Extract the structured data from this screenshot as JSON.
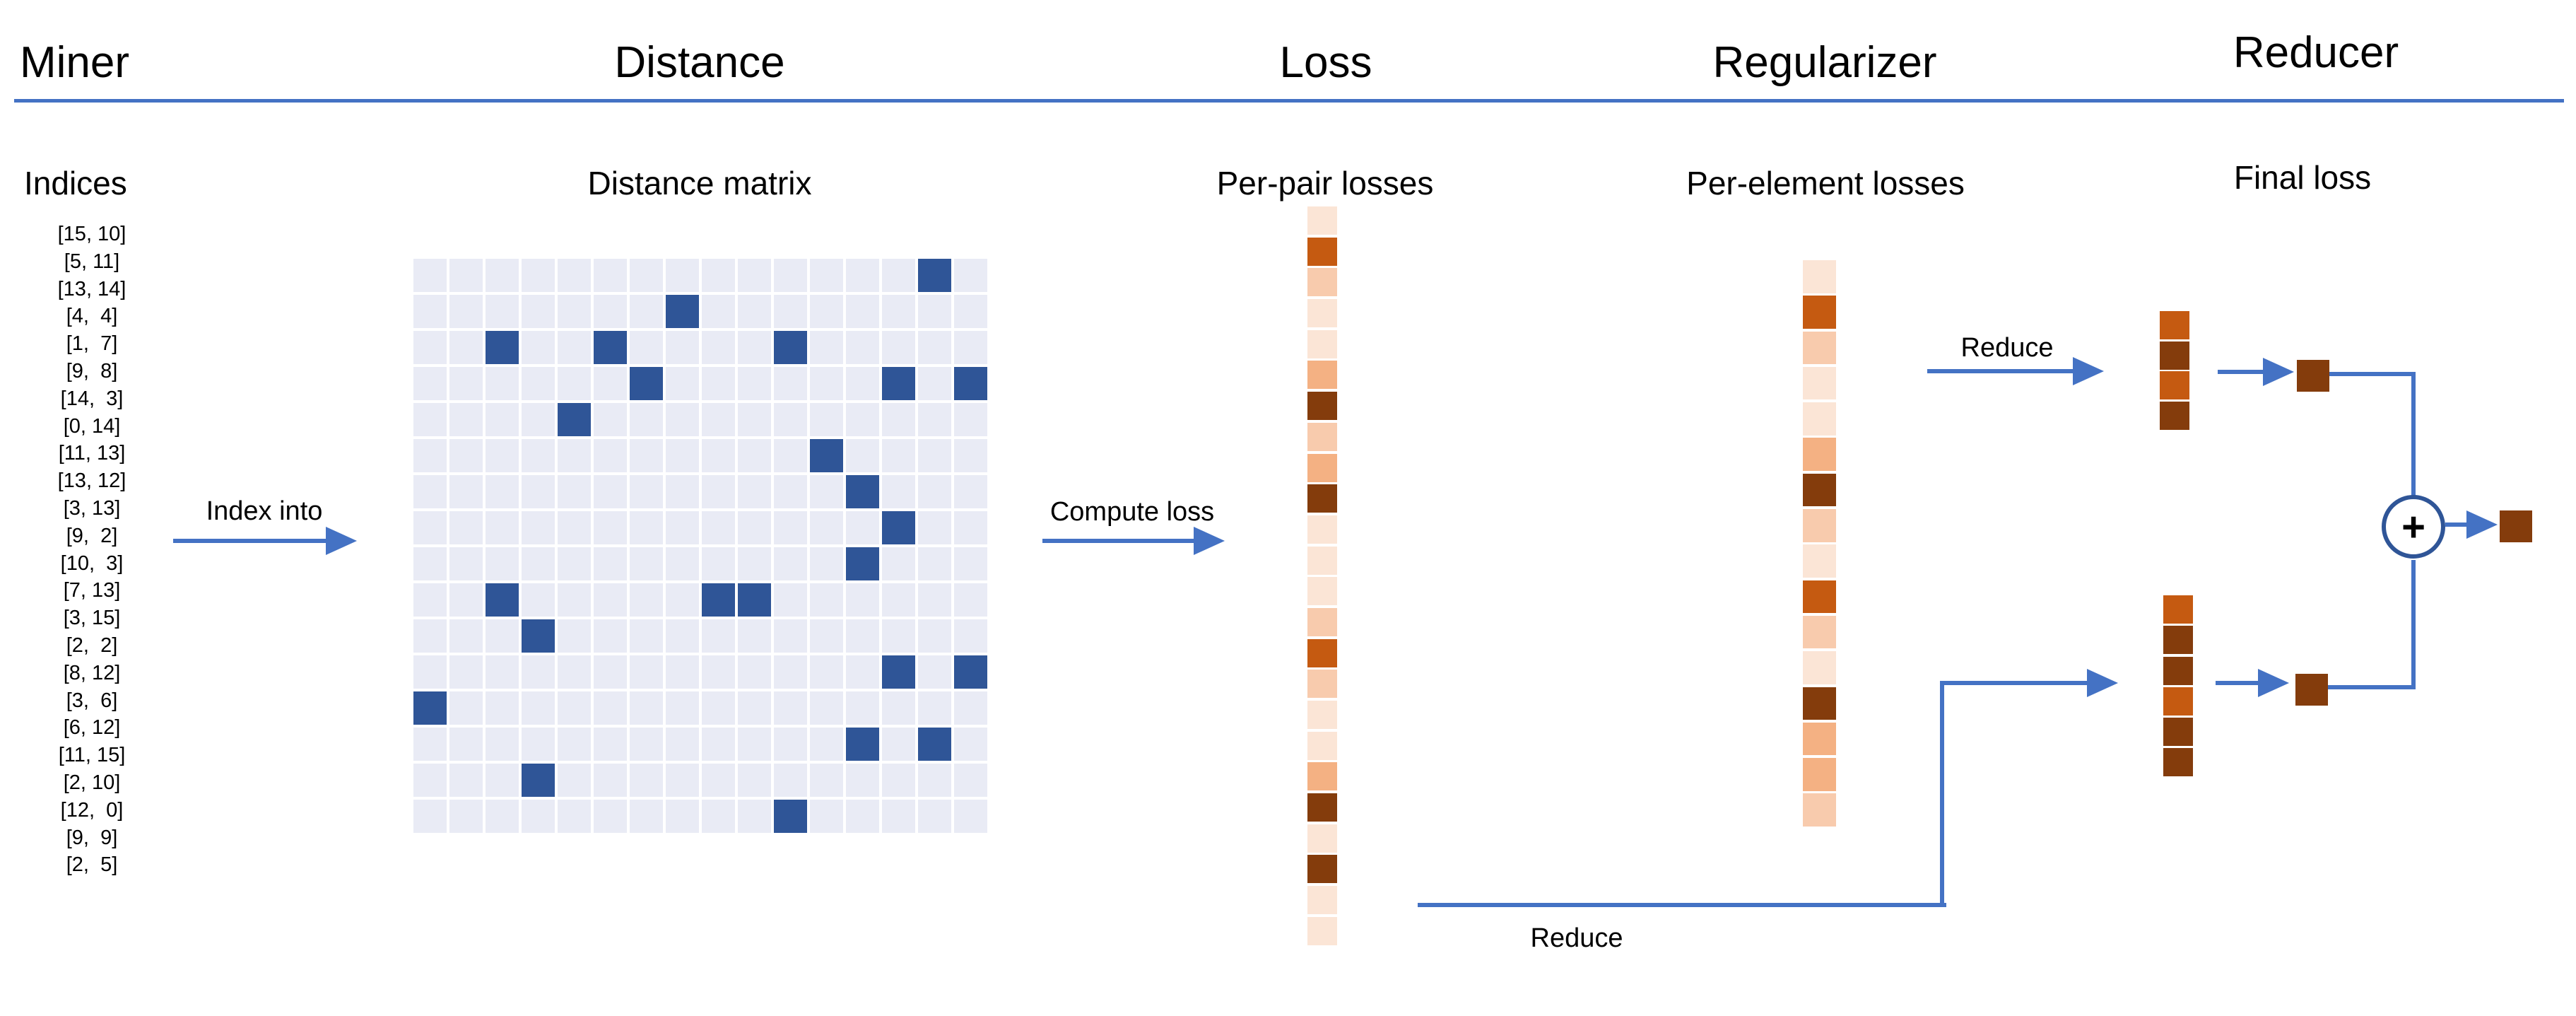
{
  "header": {
    "miner": "Miner",
    "distance": "Distance",
    "loss": "Loss",
    "regularizer": "Regularizer",
    "reducer": "Reducer"
  },
  "miner": {
    "title": "Indices",
    "indices": [
      "[15, 10]",
      "[5, 11]",
      "[13, 14]",
      "[4,  4]",
      "[1,  7]",
      "[9,  8]",
      "[14,  3]",
      "[0, 14]",
      "[11, 13]",
      "[13, 12]",
      "[3, 13]",
      "[9,  2]",
      "[10,  3]",
      "[7, 13]",
      "[3, 15]",
      "[2,  2]",
      "[8, 12]",
      "[3,  6]",
      "[6, 12]",
      "[11, 15]",
      "[2, 10]",
      "[12,  0]",
      "[9,  9]",
      "[2,  5]"
    ]
  },
  "distance": {
    "title": "Distance matrix",
    "grid_size": 16,
    "highlighted_cells": [
      [
        15,
        10
      ],
      [
        5,
        11
      ],
      [
        13,
        14
      ],
      [
        4,
        4
      ],
      [
        1,
        7
      ],
      [
        9,
        8
      ],
      [
        14,
        3
      ],
      [
        0,
        14
      ],
      [
        11,
        13
      ],
      [
        13,
        12
      ],
      [
        3,
        13
      ],
      [
        9,
        2
      ],
      [
        10,
        3
      ],
      [
        7,
        13
      ],
      [
        3,
        15
      ],
      [
        2,
        2
      ],
      [
        8,
        12
      ],
      [
        3,
        6
      ],
      [
        6,
        12
      ],
      [
        11,
        15
      ],
      [
        2,
        10
      ],
      [
        12,
        0
      ],
      [
        9,
        9
      ],
      [
        2,
        5
      ]
    ]
  },
  "loss": {
    "title": "Per-pair losses",
    "cells": [
      "#FBE5D6",
      "#C55A11",
      "#F8CBAD",
      "#FBE5D6",
      "#FBE5D6",
      "#F4B183",
      "#843C0C",
      "#F8CBAD",
      "#F4B183",
      "#843C0C",
      "#FBE5D6",
      "#FBE5D6",
      "#FBE5D6",
      "#F8CBAD",
      "#C55A11",
      "#F8CBAD",
      "#FBE5D6",
      "#FBE5D6",
      "#F4B183",
      "#843C0C",
      "#FBE5D6",
      "#843C0C",
      "#FBE5D6",
      "#FBE5D6"
    ]
  },
  "regularizer": {
    "title": "Per-element losses",
    "cells": [
      "#FBE5D6",
      "#C55A11",
      "#F8CBAD",
      "#FBE5D6",
      "#FBE5D6",
      "#F4B183",
      "#843C0C",
      "#F8CBAD",
      "#FBE5D6",
      "#C55A11",
      "#F8CBAD",
      "#FBE5D6",
      "#843C0C",
      "#F4B183",
      "#F4B183",
      "#F8CBAD"
    ]
  },
  "reducer": {
    "title": "Final loss",
    "top_stack": [
      "#C55A11",
      "#843C0C",
      "#C55A11",
      "#843C0C"
    ],
    "bottom_stack": [
      "#C55A11",
      "#843C0C",
      "#843C0C",
      "#C55A11",
      "#843C0C",
      "#843C0C"
    ],
    "top_reduced_cell": "#843C0C",
    "bottom_reduced_cell": "#843C0C",
    "final_cell": "#843C0C",
    "plus_label": "+"
  },
  "labels": {
    "index_into": "Index into",
    "compute_loss": "Compute loss",
    "reduce_top": "Reduce",
    "reduce_bottom": "Reduce"
  },
  "colors": {
    "arrow_blue": "#4472C4",
    "rule_blue": "#4472C4",
    "circle_stroke": "#2F5597",
    "matrix_cell_light": "#E9EBF5",
    "matrix_cell_highlight": "#2F5597",
    "orange_scale_low_to_high": [
      "#FBE5D6",
      "#F8CBAD",
      "#F4B183",
      "#C55A11",
      "#843C0C"
    ]
  }
}
